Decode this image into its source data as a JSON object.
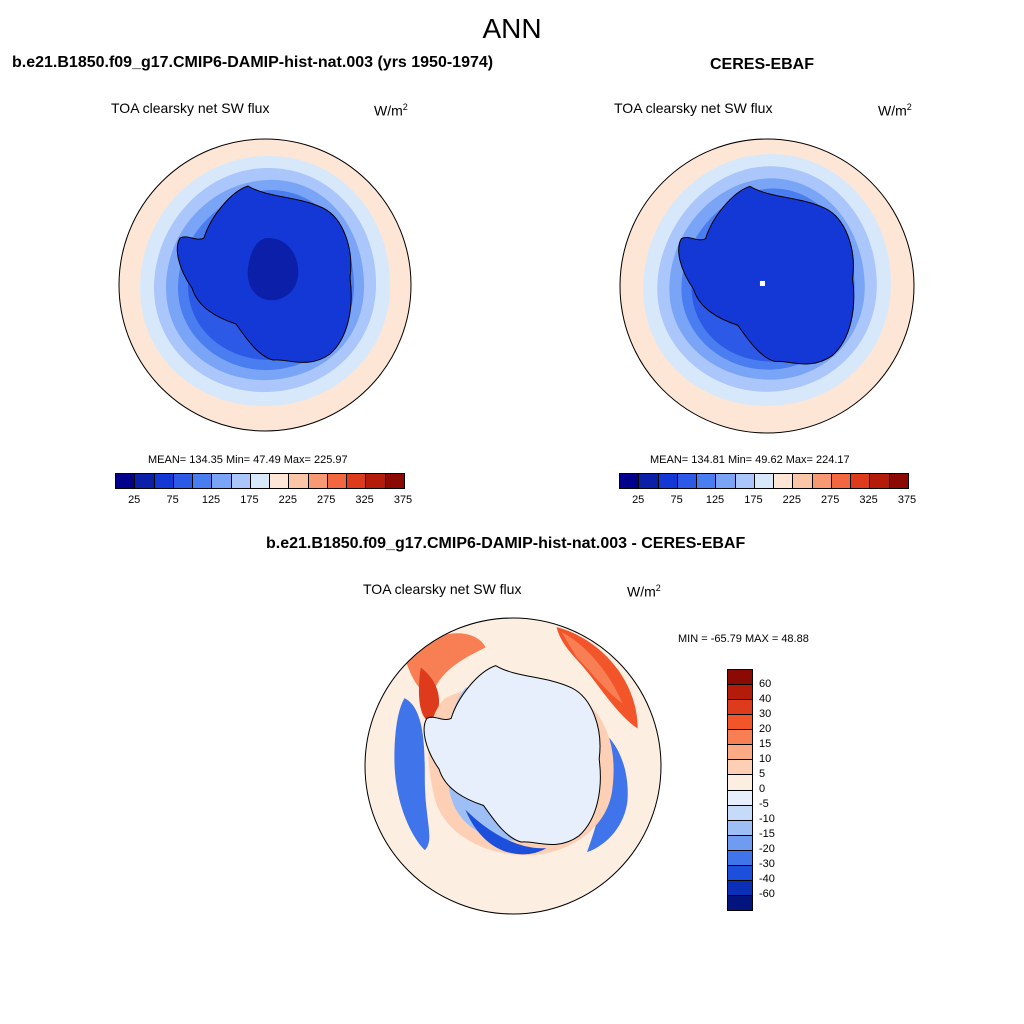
{
  "title": "ANN",
  "colors": {
    "abs_scale": [
      "#00008b",
      "#0b1fa8",
      "#1438d6",
      "#2c5ae6",
      "#4a7ef0",
      "#7aa4f5",
      "#aac6fa",
      "#d8e8fb",
      "#fde6d6",
      "#fbc5a8",
      "#f79a73",
      "#f2673f",
      "#de3a1c",
      "#b51b0b",
      "#8b0a03"
    ],
    "diff_scale": [
      "#8b0a03",
      "#b51b0b",
      "#de3a1c",
      "#f2552a",
      "#f77f53",
      "#fbaa85",
      "#fdd0b6",
      "#fdeee2",
      "#e6effb",
      "#c6dafa",
      "#9ebff6",
      "#6f9cf0",
      "#3f74ea",
      "#1b4fdc",
      "#0b2fb8",
      "#04147f"
    ]
  },
  "panels": {
    "model": {
      "title": "b.e21.B1850.f09_g17.CMIP6-DAMIP-hist-nat.003 (yrs 1950-1974)",
      "variable": "TOA clearsky net SW flux",
      "units": "W/m",
      "units_sup": "2",
      "stats": "MEAN= 134.35  Min=  47.49  Max= 225.97",
      "colorbar_ticks": [
        "25",
        "75",
        "125",
        "175",
        "225",
        "275",
        "325",
        "375"
      ]
    },
    "obs": {
      "title": "CERES-EBAF",
      "variable": "TOA clearsky net SW flux",
      "units": "W/m",
      "units_sup": "2",
      "stats": "MEAN= 134.81  Min=  49.62  Max= 224.17",
      "colorbar_ticks": [
        "25",
        "75",
        "125",
        "175",
        "225",
        "275",
        "325",
        "375"
      ]
    },
    "diff": {
      "title": "b.e21.B1850.f09_g17.CMIP6-DAMIP-hist-nat.003 - CERES-EBAF",
      "variable": "TOA clearsky net SW flux",
      "units": "W/m",
      "units_sup": "2",
      "stats": "MIN = -65.79 MAX =  48.88",
      "colorbar_ticks": [
        "60",
        "40",
        "30",
        "20",
        "15",
        "10",
        "5",
        "0",
        "-5",
        "-10",
        "-15",
        "-20",
        "-30",
        "-40",
        "-60"
      ]
    }
  }
}
